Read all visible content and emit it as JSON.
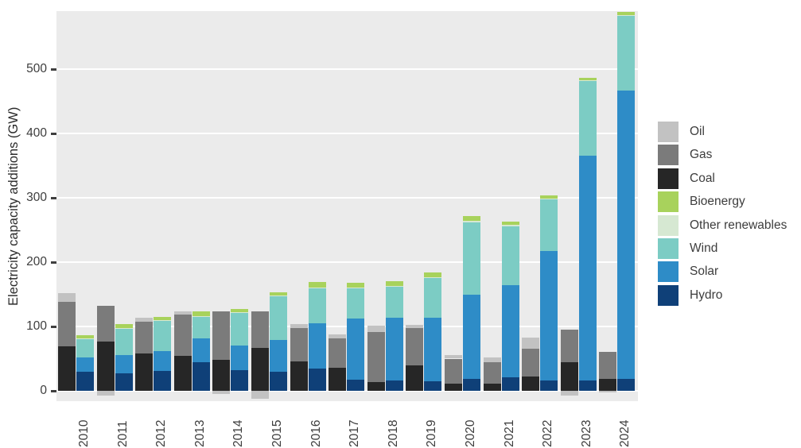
{
  "chart_data": {
    "type": "bar",
    "subtype": "grouped-stacked",
    "title": "",
    "xlabel": "",
    "ylabel": "Electricity capacity additions (GW)",
    "unit": "GW",
    "categories": [
      "2010",
      "2011",
      "2012",
      "2013",
      "2014",
      "2015",
      "2016",
      "2017",
      "2018",
      "2019",
      "2020",
      "2021",
      "2022",
      "2023",
      "2024"
    ],
    "yticks": [
      0,
      100,
      200,
      300,
      400,
      500
    ],
    "ylim": [
      -16,
      590
    ],
    "grid": true,
    "legend_position": "right",
    "plot_background": "#ebebeb",
    "gridline_color": "#ffffff",
    "axis_text_color": "#3d3d3d",
    "groups": {
      "fossil_stack_bottom_to_top": [
        "Coal",
        "Gas",
        "Oil"
      ],
      "renewables_stack_bottom_to_top": [
        "Hydro",
        "Solar",
        "Wind",
        "Other renewables",
        "Bioenergy"
      ]
    },
    "legend": [
      "Oil",
      "Gas",
      "Coal",
      "Bioenergy",
      "Other renewables",
      "Wind",
      "Solar",
      "Hydro"
    ],
    "series": [
      {
        "name": "Oil",
        "group": "fossil",
        "color": "#c2c2c2",
        "values": [
          14,
          -7,
          7,
          5,
          -5,
          -12,
          6,
          7,
          10,
          5,
          6,
          8,
          17,
          -8,
          -3
        ]
      },
      {
        "name": "Gas",
        "group": "fossil",
        "color": "#7b7b7b",
        "values": [
          69,
          56,
          49,
          65,
          76,
          56,
          52,
          45,
          77,
          57,
          39,
          33,
          44,
          51,
          42
        ]
      },
      {
        "name": "Coal",
        "group": "fossil",
        "color": "#262626",
        "values": [
          69,
          76,
          58,
          54,
          48,
          67,
          46,
          36,
          14,
          40,
          11,
          11,
          22,
          44,
          19
        ]
      },
      {
        "name": "Bioenergy",
        "group": "renewables",
        "color": "#a8d25c",
        "values": [
          5,
          6,
          5,
          8,
          5,
          5,
          8,
          7,
          7,
          7,
          7,
          5,
          5,
          4,
          5
        ]
      },
      {
        "name": "Other renewables",
        "group": "renewables",
        "color": "#d6e8d2",
        "values": [
          1,
          1,
          1,
          1,
          1,
          1,
          1,
          1,
          1,
          1,
          2,
          2,
          2,
          1,
          1
        ]
      },
      {
        "name": "Wind",
        "group": "renewables",
        "color": "#7cccc4",
        "values": [
          29,
          41,
          47,
          34,
          51,
          68,
          55,
          48,
          49,
          62,
          113,
          92,
          80,
          117,
          116
        ]
      },
      {
        "name": "Solar",
        "group": "renewables",
        "color": "#2e8cc7",
        "values": [
          22,
          29,
          31,
          37,
          38,
          49,
          70,
          95,
          97,
          99,
          131,
          143,
          201,
          349,
          449
        ]
      },
      {
        "name": "Hydro",
        "group": "renewables",
        "color": "#0f4078",
        "values": [
          30,
          27,
          31,
          44,
          32,
          30,
          35,
          17,
          16,
          15,
          18,
          21,
          16,
          16,
          18
        ]
      }
    ]
  }
}
